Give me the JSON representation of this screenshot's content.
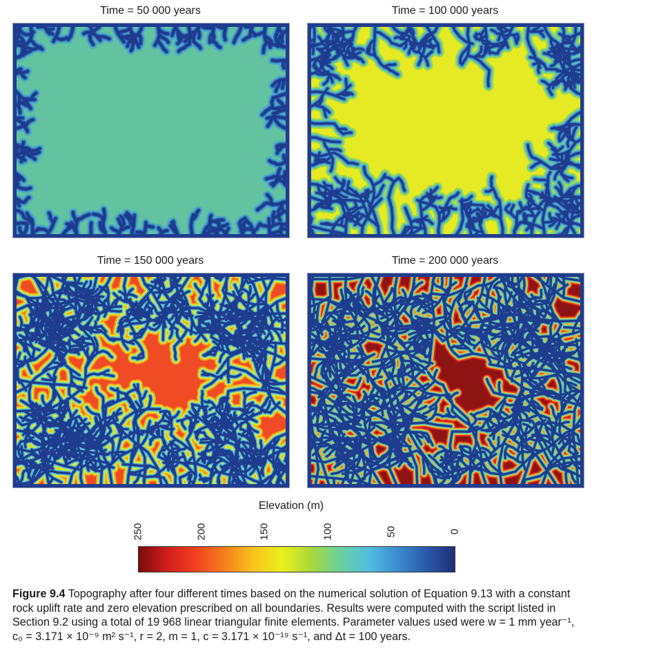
{
  "panels": [
    {
      "title": "Time = 50 000 years",
      "stage": 1
    },
    {
      "title": "Time = 100 000 years",
      "stage": 2
    },
    {
      "title": "Time = 150 000 years",
      "stage": 3
    },
    {
      "title": "Time = 200 000 years",
      "stage": 4
    }
  ],
  "colorbar": {
    "title": "Elevation (m)",
    "ticks": [
      "250",
      "200",
      "150",
      "100",
      "50",
      "0"
    ],
    "range": [
      250,
      0
    ],
    "colors": [
      "#7a0c0c",
      "#d21d1d",
      "#f2421f",
      "#f6801c",
      "#f8c41d",
      "#eaf01c",
      "#a8d83a",
      "#6ad19a",
      "#52bde0",
      "#3b8ed0",
      "#2a5aab",
      "#1e2f79"
    ]
  },
  "caption": {
    "label": "Figure 9.4",
    "line1": "Topography after four different times based on the numerical solution of Equation 9.13 with a constant",
    "line2": "rock uplift rate and zero elevation prescribed on all boundaries. Results were computed with the script listed in",
    "line3": "Section 9.2 using a total of 19 968 linear triangular finite elements. Parameter values used were w = 1 mm year⁻¹,",
    "line4": "c₀ = 3.171 × 10⁻⁹ m² s⁻¹, r = 2, m = 1, c = 3.171 × 10⁻¹⁹ s⁻¹, and Δt = 100 years."
  }
}
